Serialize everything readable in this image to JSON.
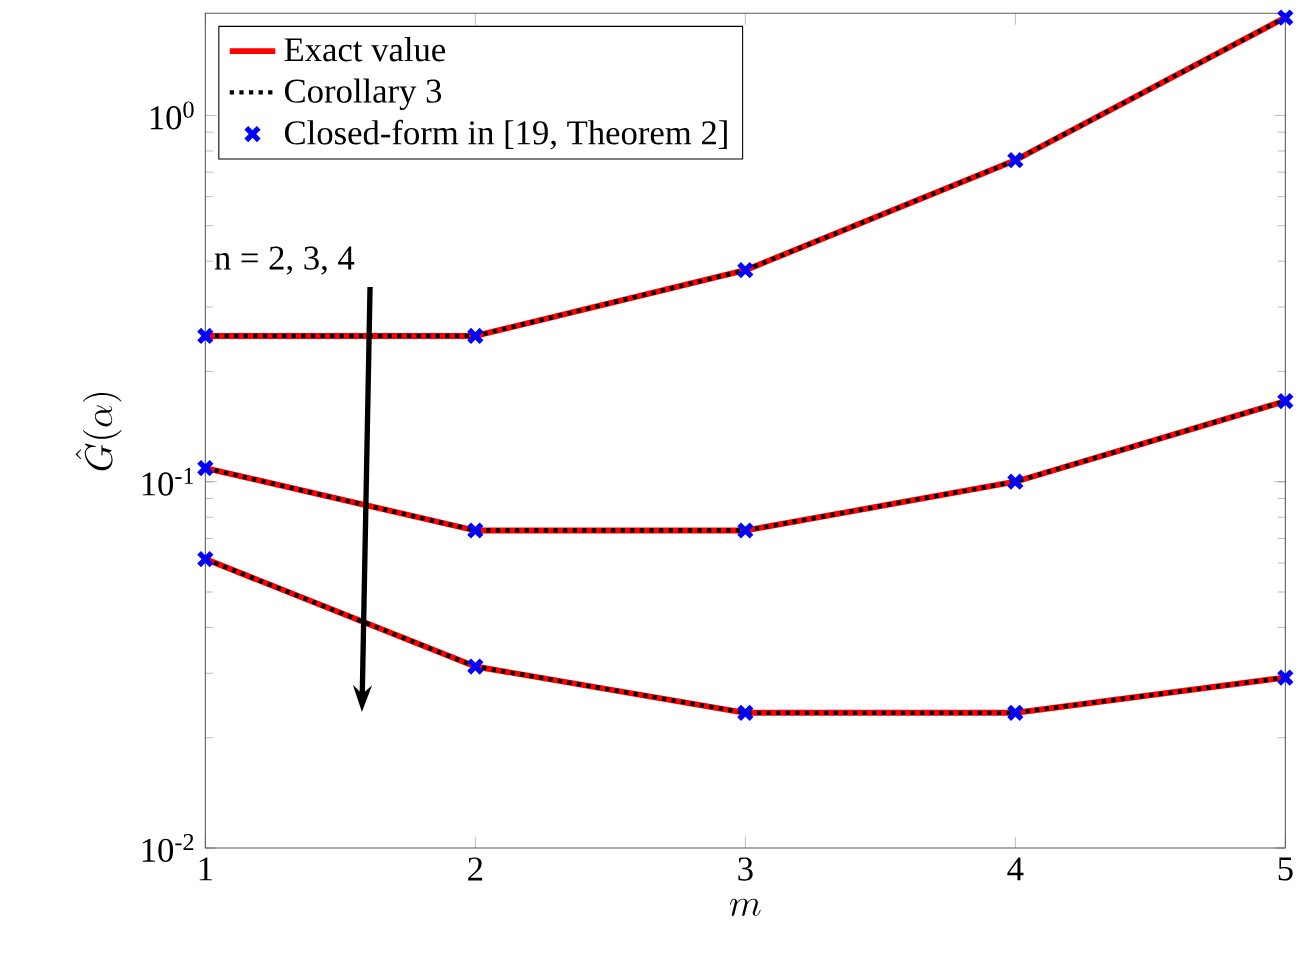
{
  "chart_data": {
    "type": "line",
    "xlabel": "m",
    "ylabel": "\\hat{G}(\\alpha)",
    "x": [
      1,
      2,
      3,
      4,
      5
    ],
    "series": [
      {
        "name": "Exact value",
        "color": "#ff0000",
        "line_style": "solid",
        "marker": "none",
        "values": [
          0.25,
          0.25,
          0.378,
          0.755,
          1.85
        ]
      },
      {
        "name": "Corollary 3",
        "color": "#000000",
        "line_style": "dotted",
        "marker": "none",
        "values": [
          0.25,
          0.25,
          0.378,
          0.755,
          1.85
        ]
      },
      {
        "name": "Closed-form in [19, Theorem 2]",
        "type": "scatter",
        "color": "#0000ff",
        "marker": "cross",
        "values": [
          0.25,
          0.25,
          0.378,
          0.755,
          1.85
        ]
      },
      {
        "color": "#ff0000",
        "line_style": "solid",
        "marker": "none",
        "values": [
          0.109,
          0.0736,
          0.0736,
          0.1,
          0.166
        ]
      },
      {
        "color": "#000000",
        "line_style": "dotted",
        "marker": "none",
        "values": [
          0.109,
          0.0736,
          0.0736,
          0.1,
          0.166
        ]
      },
      {
        "type": "scatter",
        "color": "#0000ff",
        "marker": "cross",
        "values": [
          0.109,
          0.0736,
          0.0736,
          0.1,
          0.166
        ]
      },
      {
        "color": "#ff0000",
        "line_style": "solid",
        "marker": "none",
        "values": [
          0.0615,
          0.0313,
          0.0234,
          0.0234,
          0.0292
        ]
      },
      {
        "color": "#000000",
        "line_style": "dotted",
        "marker": "none",
        "values": [
          0.0615,
          0.0313,
          0.0234,
          0.0234,
          0.0292
        ]
      },
      {
        "type": "scatter",
        "color": "#0000ff",
        "marker": "cross",
        "values": [
          0.0615,
          0.0313,
          0.0234,
          0.0234,
          0.0292
        ]
      }
    ],
    "xlim": [
      1,
      5
    ],
    "xticks": [
      1,
      2,
      3,
      4,
      5
    ],
    "ylim": [
      0.01,
      1.9
    ],
    "yticks": [
      {
        "value": 0.01,
        "label": "10$^{-2}$"
      },
      {
        "value": 0.1,
        "label": "10$^{-1}$"
      },
      {
        "value": 1,
        "label": "10$^{0}$"
      }
    ],
    "log": "y",
    "grid": false,
    "legend": "top left",
    "annotations": [
      "n = 2, 3, 4"
    ]
  }
}
